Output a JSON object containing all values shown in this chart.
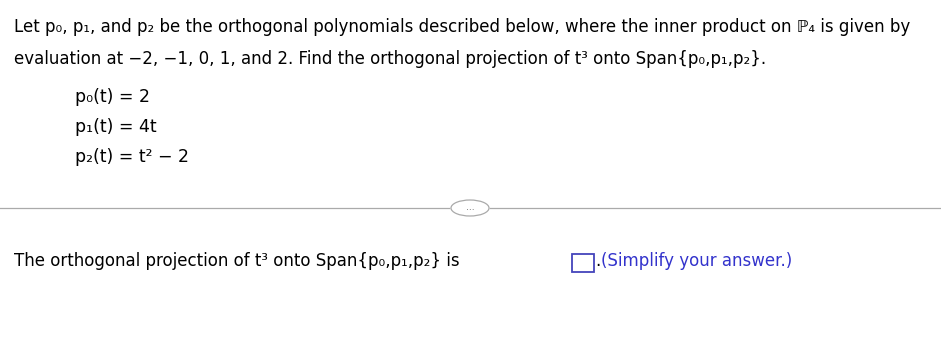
{
  "bg_color": "#ffffff",
  "text_color": "#000000",
  "blue_color": "#3333cc",
  "fig_width": 9.41,
  "fig_height": 3.45,
  "line1": "Let p₀, p₁, and p₂ be the orthogonal polynomials described below, where the inner product on ℙ₄ is given by",
  "line2": "evaluation at −2, −1, 0, 1, and 2. Find the orthogonal projection of t³ onto Span{p₀,p₁,p₂}.",
  "eq1": "p₀(t) = 2",
  "eq2": "p₁(t) = 4t",
  "eq3": "p₂(t) = t² − 2",
  "bottom_line": "The orthogonal projection of t³ onto Span{p₀,p₁,p₂} is",
  "simplify": "(Simplify your answer.)",
  "dots_text": "..."
}
